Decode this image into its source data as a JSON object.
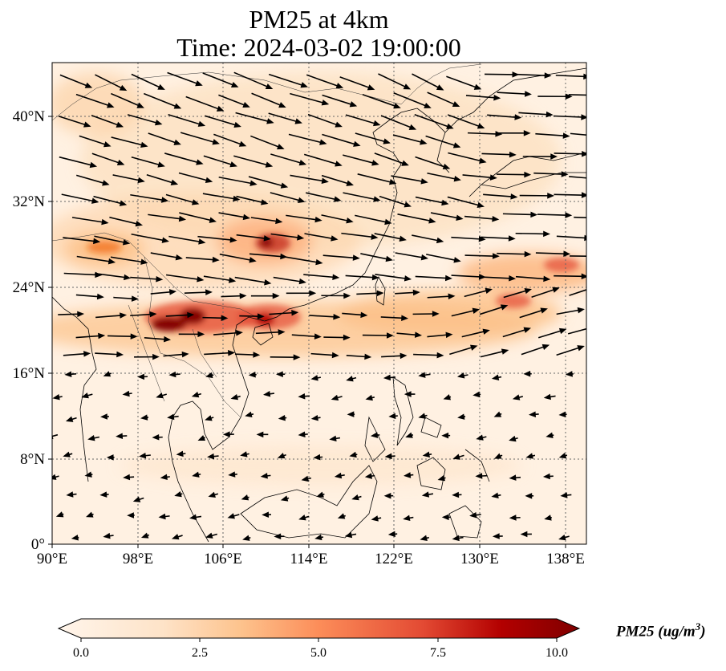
{
  "title": {
    "line1": "PM25 at 4km",
    "line2": "Time: 2024-03-02 19:00:00"
  },
  "map": {
    "lon_range": [
      90,
      140
    ],
    "lat_range": [
      0,
      45
    ],
    "x_ticks": [
      "90°E",
      "98°E",
      "106°E",
      "114°E",
      "122°E",
      "130°E",
      "138°E"
    ],
    "x_tick_values": [
      90,
      98,
      106,
      114,
      122,
      130,
      138
    ],
    "y_ticks": [
      "0°",
      "8°N",
      "16°N",
      "24°N",
      "32°N",
      "40°N"
    ],
    "y_tick_values": [
      0,
      8,
      16,
      24,
      32,
      40
    ],
    "gridlines": true,
    "field": "PM25",
    "wind_vectors": true,
    "hotspots": [
      {
        "lon": 102,
        "lat": 20.5,
        "value": 10
      },
      {
        "lon": 103,
        "lat": 21.5,
        "value": 9.5
      },
      {
        "lon": 108.5,
        "lat": 21,
        "value": 7
      },
      {
        "lon": 110,
        "lat": 28.5,
        "value": 7.5
      },
      {
        "lon": 133,
        "lat": 23.5,
        "value": 6
      },
      {
        "lon": 137,
        "lat": 26.5,
        "value": 6
      }
    ]
  },
  "colorbar": {
    "min": 0,
    "max": 10,
    "ticks": [
      "0.0",
      "2.5",
      "5.0",
      "7.5",
      "10.0"
    ],
    "tick_values": [
      0,
      2.5,
      5,
      7.5,
      10
    ],
    "colormap": [
      "#fff5eb",
      "#fdd8b0",
      "#fdae6b",
      "#f16913",
      "#d13a14",
      "#7f0000"
    ],
    "label_main": "PM25 (ug/m",
    "label_exp": "3",
    "label_end": ")"
  }
}
